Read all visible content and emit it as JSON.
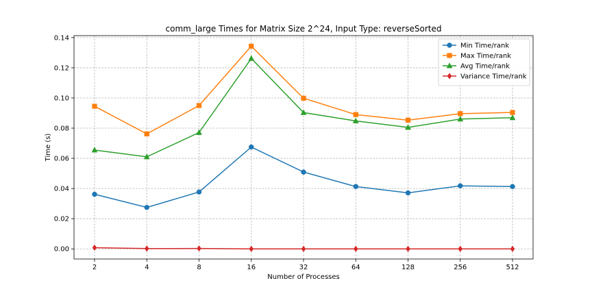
{
  "chart_data": {
    "type": "line",
    "title": "comm_large Times for Matrix Size 2^24, Input Type: reverseSorted",
    "xlabel": "Number of Processes",
    "ylabel": "Time (s)",
    "categories": [
      "2",
      "4",
      "8",
      "16",
      "32",
      "64",
      "128",
      "256",
      "512"
    ],
    "ylim": [
      -0.0067,
      0.1413
    ],
    "yticks": [
      0.0,
      0.02,
      0.04,
      0.06,
      0.08,
      0.1,
      0.12,
      0.14
    ],
    "ytick_labels": [
      "0.00",
      "0.02",
      "0.04",
      "0.06",
      "0.08",
      "0.10",
      "0.12",
      "0.14"
    ],
    "grid": true,
    "legend_position": "top-right",
    "series": [
      {
        "name": "Min Time/rank",
        "color": "#1f77b4",
        "marker": "circle",
        "values": [
          0.0362,
          0.0275,
          0.0377,
          0.0675,
          0.0509,
          0.0413,
          0.0371,
          0.0418,
          0.0413
        ]
      },
      {
        "name": "Max Time/rank",
        "color": "#ff7f0e",
        "marker": "square",
        "values": [
          0.0945,
          0.0762,
          0.095,
          0.1343,
          0.0998,
          0.089,
          0.0853,
          0.0896,
          0.0904
        ]
      },
      {
        "name": "Avg Time/rank",
        "color": "#2ca02c",
        "marker": "triangle",
        "values": [
          0.0655,
          0.061,
          0.0771,
          0.1262,
          0.0903,
          0.0848,
          0.0805,
          0.086,
          0.0869
        ]
      },
      {
        "name": "Variance Time/rank",
        "color": "#d62728",
        "marker": "diamond",
        "values": [
          0.0008,
          0.0002,
          0.0003,
          0.0,
          0.0,
          0.0,
          0.0,
          0.0,
          0.0
        ]
      }
    ]
  }
}
